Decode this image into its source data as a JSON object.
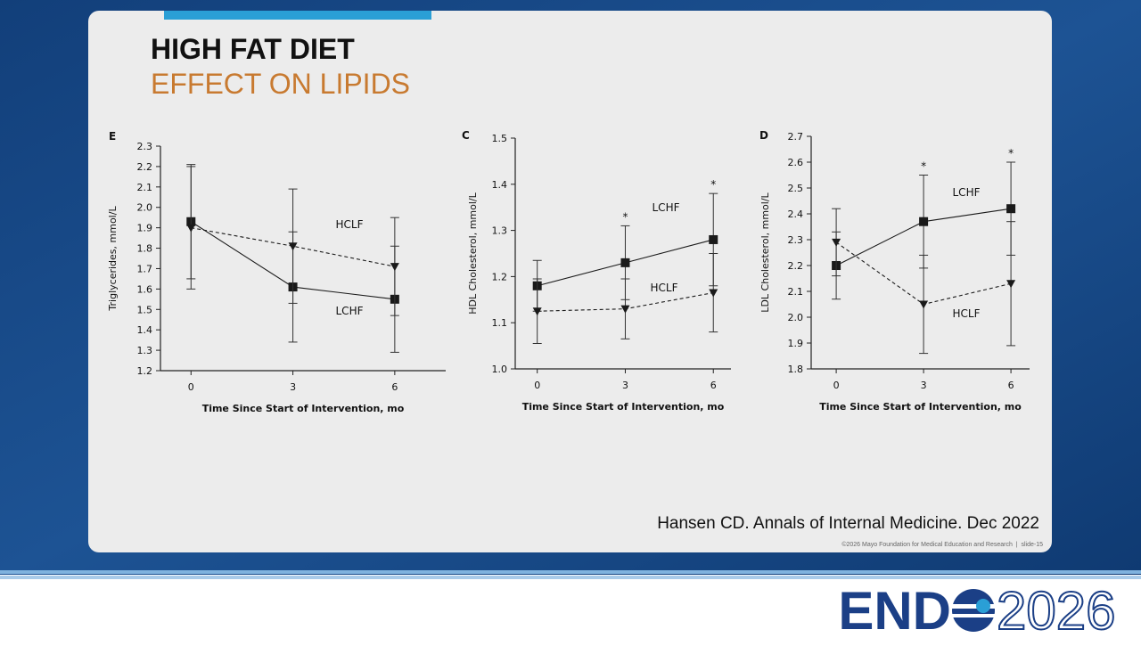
{
  "slide": {
    "title": "HIGH FAT DIET",
    "subtitle": "EFFECT ON LIPIDS",
    "citation": "Hansen CD. Annals of Internal Medicine. Dec 2022",
    "footer": "©2026 Mayo Foundation for Medical Education and Research  |  slide-15"
  },
  "logo": {
    "left": "END",
    "right": "2026"
  },
  "chart_data": [
    {
      "type": "line",
      "panel": "E",
      "y_label": "Triglycerides, mmol/L",
      "x_label": "Time Since Start of Intervention, mo",
      "x": [
        0,
        3,
        6
      ],
      "xlim": [
        -0.9,
        7.5
      ],
      "xticks": [
        0,
        3,
        6
      ],
      "ylim": [
        1.2,
        2.3
      ],
      "yticks": [
        1.2,
        1.3,
        1.4,
        1.5,
        1.6,
        1.7,
        1.8,
        1.9,
        {
          "value": 2,
          "label": "2.0"
        },
        2.1,
        2.2,
        2.3
      ],
      "series": [
        {
          "name": "LCHF",
          "marker": "square",
          "dashed": false,
          "color": "#1a1a1a",
          "values": [
            1.93,
            1.61,
            1.55
          ],
          "errors": [
            0.28,
            0.27,
            0.26
          ]
        },
        {
          "name": "HCLF",
          "marker": "triangle",
          "dashed": true,
          "color": "#1a1a1a",
          "values": [
            1.9,
            1.81,
            1.71
          ],
          "errors": [
            0.3,
            0.28,
            0.24
          ]
        }
      ],
      "annotations": []
    },
    {
      "type": "line",
      "panel": "C",
      "y_label": "HDL Cholesterol, mmol/L",
      "x_label": "Time Since Start of Intervention, mo",
      "x": [
        0,
        3,
        6
      ],
      "xlim": [
        -0.75,
        6.6
      ],
      "xticks": [
        0,
        3,
        6
      ],
      "ylim": [
        1,
        1.5
      ],
      "yticks": [
        {
          "value": 1,
          "label": "1.0"
        },
        1.1,
        1.2,
        1.3,
        1.4,
        {
          "value": 1.5,
          "label": "1.5"
        }
      ],
      "series": [
        {
          "name": "LCHF",
          "marker": "square",
          "dashed": false,
          "color": "#1a1a1a",
          "values": [
            1.18,
            1.23,
            1.28
          ],
          "errors": [
            0.055,
            0.08,
            0.1
          ]
        },
        {
          "name": "HCLF",
          "marker": "triangle",
          "dashed": true,
          "color": "#1a1a1a",
          "values": [
            1.125,
            1.13,
            1.165
          ],
          "errors": [
            0.07,
            0.065,
            0.085
          ]
        }
      ],
      "annotations": [
        {
          "text": "*",
          "x": 3
        },
        {
          "text": "*",
          "x": 6
        }
      ]
    },
    {
      "type": "line",
      "panel": "D",
      "y_label": "LDL Cholesterol, mmol/L",
      "x_label": "Time Since Start of Intervention, mo",
      "x": [
        0,
        3,
        6
      ],
      "xlim": [
        -0.86,
        6.64
      ],
      "xticks": [
        0,
        3,
        6
      ],
      "ylim": [
        1.8,
        2.7
      ],
      "yticks": [
        1.8,
        1.9,
        {
          "value": 2,
          "label": "2.0"
        },
        2.1,
        2.2,
        2.3,
        2.4,
        2.5,
        2.6,
        2.7
      ],
      "series": [
        {
          "name": "LCHF",
          "marker": "square",
          "dashed": false,
          "color": "#1a1a1a",
          "values": [
            2.2,
            2.37,
            2.42
          ],
          "errors": [
            0.13,
            0.18,
            0.18
          ]
        },
        {
          "name": "HCLF",
          "marker": "triangle",
          "dashed": true,
          "color": "#1a1a1a",
          "values": [
            2.29,
            2.05,
            2.13
          ],
          "errors": [
            0.13,
            0.19,
            0.24
          ]
        }
      ],
      "annotations": [
        {
          "text": "*",
          "x": 3
        },
        {
          "text": "*",
          "x": 6
        }
      ]
    }
  ]
}
